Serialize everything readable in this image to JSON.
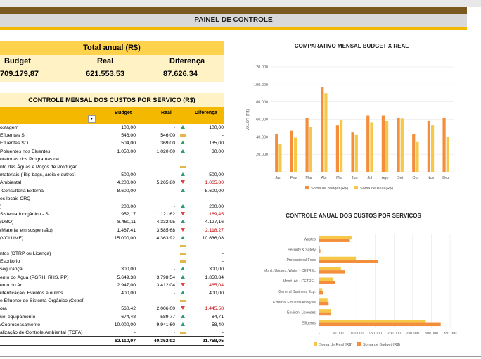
{
  "header": {
    "title": "PAINEL DE CONTROLE"
  },
  "annual": {
    "title": "Total anual (R$)",
    "budget_label": "Budget",
    "real_label": "Real",
    "diff_label": "Diferença",
    "budget_value": "709.179,87",
    "real_value": "621.553,53",
    "diff_value": "87.626,34"
  },
  "costs": {
    "title": "CONTROLE MENSAL DOS CUSTOS POR SERVIÇO (R$)",
    "col_budget": "Budget",
    "col_real": "Real",
    "col_diff": "Diferença",
    "filter_icon": "▾",
    "rows": [
      {
        "name": "ostagem",
        "budget": "100,00",
        "real": "-",
        "ind": "up",
        "diff": "100,00",
        "neg": false
      },
      {
        "name": "Efluentes SI",
        "budget": "546,00",
        "real": "546,00",
        "ind": "flat",
        "diff": "-",
        "neg": false
      },
      {
        "name": "Efluentes SO",
        "budget": "504,00",
        "real": "369,00",
        "ind": "up",
        "diff": "135,00",
        "neg": false
      },
      {
        "name": "Poluentes nos Eluentes",
        "budget": "1.050,00",
        "real": "1.020,00",
        "ind": "up",
        "diff": "30,00",
        "neg": false
      },
      {
        "name": "oratorias dos Programas de",
        "budget": "",
        "real": "",
        "ind": "",
        "diff": "",
        "neg": false
      },
      {
        "name": "nto das Águas e Poços de Produção.",
        "budget": "",
        "real": "",
        "ind": "flat",
        "diff": "",
        "neg": false
      },
      {
        "name": "materiais ( Big bags, areia e outros)",
        "budget": "500,00",
        "real": "-",
        "ind": "up",
        "diff": "500,00",
        "neg": false
      },
      {
        "name": "Ambiental",
        "budget": "4.200,00",
        "real": "5.265,80",
        "ind": "down",
        "diff": "1.065,80",
        "neg": true
      },
      {
        "name": "-Consultoria Externa",
        "budget": "8.600,00",
        "real": "-",
        "ind": "up",
        "diff": "8.600,00",
        "neg": false
      },
      {
        "name": "es locais CRQ",
        "budget": "",
        "real": "",
        "ind": "",
        "diff": "",
        "neg": false
      },
      {
        "name": ")",
        "budget": "200,00",
        "real": "-",
        "ind": "up",
        "diff": "200,00",
        "neg": false
      },
      {
        "name": "Sistema Inorgânico - SI",
        "budget": "952,17",
        "real": "1.121,62",
        "ind": "down",
        "diff": "169,45",
        "neg": true
      },
      {
        "name": "(DBO)",
        "budget": "8.460,11",
        "real": "4.332,95",
        "ind": "up",
        "diff": "4.127,16",
        "neg": false
      },
      {
        "name": "(Material em suspensão)",
        "budget": "1.467,41",
        "real": "3.585,68",
        "ind": "down",
        "diff": "2.118,27",
        "neg": true
      },
      {
        "name": "(VOLUME)",
        "budget": "15.000,00",
        "real": "4.363,92",
        "ind": "up",
        "diff": "10.636,08",
        "neg": false
      },
      {
        "name": "",
        "budget": "",
        "real": "",
        "ind": "flat",
        "diff": "-",
        "neg": false
      },
      {
        "name": "ntos (DTRP ou Licença)",
        "budget": "",
        "real": "",
        "ind": "flat",
        "diff": "-",
        "neg": false
      },
      {
        "name": "Escritorio",
        "budget": "",
        "real": "",
        "ind": "flat",
        "diff": "-",
        "neg": false
      },
      {
        "name": "segurança",
        "budget": "300,00",
        "real": "-",
        "ind": "up",
        "diff": "300,00",
        "neg": false
      },
      {
        "name": "ento do Água (PGRH, RHS, PP)",
        "budget": "5.649,38",
        "real": "3.798,54",
        "ind": "up",
        "diff": "1.850,84",
        "neg": false
      },
      {
        "name": "ento do Ar",
        "budget": "2.947,00",
        "real": "3.412,04",
        "ind": "down",
        "diff": "465,04",
        "neg": true
      },
      {
        "name": "utenticação, Eventos e outros.",
        "budget": "400,00",
        "real": "-",
        "ind": "up",
        "diff": "400,00",
        "neg": false
      },
      {
        "name": "e Efluente do Sistema Orgânico (Cetrel)",
        "budget": "",
        "real": "",
        "ind": "flat",
        "diff": "-",
        "neg": false
      },
      {
        "name": "ora",
        "budget": "560,42",
        "real": "2.006,00",
        "ind": "down",
        "diff": "1.445,58",
        "neg": true
      },
      {
        "name": "uel equipamento",
        "budget": "674,48",
        "real": "589,77",
        "ind": "up",
        "diff": "84,71",
        "neg": false
      },
      {
        "name": "/Coprocessamento",
        "budget": "10.000,00",
        "real": "9.941,60",
        "ind": "up",
        "diff": "58,40",
        "neg": false
      },
      {
        "name": "alização de Controle Ambiental (TCFA)",
        "budget": "-",
        "real": "-",
        "ind": "flat",
        "diff": "-",
        "neg": false
      }
    ],
    "total": {
      "budget": "62.110,97",
      "real": "40.352,92",
      "diff": "21.758,05"
    }
  },
  "colors": {
    "budget": "#f28e3c",
    "real": "#f5c84a",
    "gold": "#f5b800",
    "brown": "#7a5a1e"
  },
  "chart_data": [
    {
      "type": "bar",
      "title": "COMPARATIVO MENSAL BUDGET X REAL",
      "ylabel": "VALOR (R$)",
      "xlabel": "",
      "ylim": [
        0,
        120000
      ],
      "yticks": [
        "-",
        "20.000",
        "40.000",
        "60.000",
        "80.000",
        "100.000",
        "120.000"
      ],
      "categories": [
        "Jan",
        "Fev",
        "Mar",
        "Abr",
        "Mai",
        "Jun",
        "Jul",
        "Ago",
        "Set",
        "Out",
        "Nov",
        "Dez"
      ],
      "series": [
        {
          "name": "Soma de Budget (R$)",
          "values": [
            43000,
            47000,
            62000,
            97000,
            53000,
            45000,
            64000,
            64000,
            62000,
            43000,
            58000,
            62000
          ]
        },
        {
          "name": "Soma de Real (R$)",
          "values": [
            32000,
            39000,
            51000,
            90000,
            59000,
            42000,
            56000,
            58000,
            61000,
            34000,
            53000,
            40000
          ]
        }
      ],
      "legend": "bottom"
    },
    {
      "type": "bar",
      "orientation": "horizontal",
      "title": "CONTROLE ANUAL DOS CUSTOS POR SERVIÇOS",
      "xlim": [
        0,
        350000
      ],
      "xticks": [
        "-",
        "50.000",
        "100.000",
        "150.000",
        "200.000",
        "250.000",
        "300.000",
        "350.000"
      ],
      "categories": [
        "Wastes",
        "Security & Safety",
        "Professional Fees",
        "Monit. Underg. Water - CETREL",
        "Monit. Air - CETREL",
        "General Business Exp.",
        "External Effluents Analysis",
        "Environ. Licenses",
        "Effluents"
      ],
      "series": [
        {
          "name": "Soma de Real (R$)",
          "values": [
            88000,
            2000,
            98000,
            58000,
            38000,
            8000,
            22000,
            32000,
            285000
          ]
        },
        {
          "name": "Soma de Budget (R$)",
          "values": [
            82000,
            3000,
            158000,
            68000,
            42000,
            10000,
            25000,
            30000,
            325000
          ]
        }
      ],
      "legend": "bottom"
    }
  ]
}
